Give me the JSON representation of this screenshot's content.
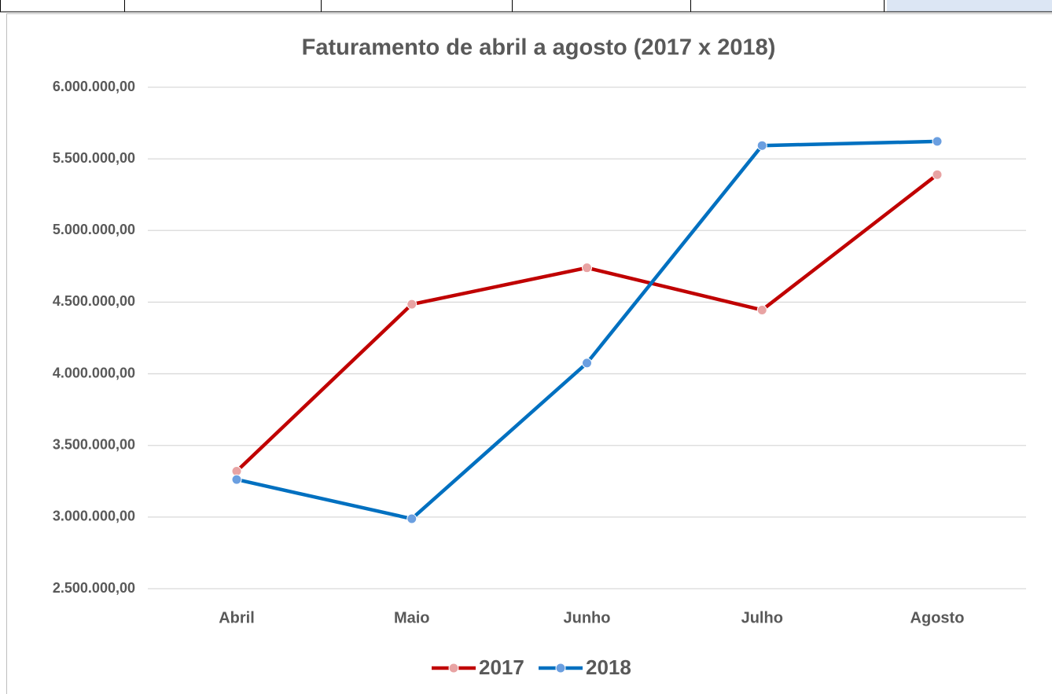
{
  "chart_data": {
    "type": "line",
    "title": "Faturamento de abril a agosto (2017 x 2018)",
    "categories": [
      "Abril",
      "Maio",
      "Junho",
      "Julho",
      "Agosto"
    ],
    "series": [
      {
        "name": "2017",
        "color": "#c00000",
        "marker_color": "#e8a3a3",
        "values": [
          3320000,
          4485000,
          4740000,
          4445000,
          5390000
        ]
      },
      {
        "name": "2018",
        "color": "#0070c0",
        "marker_color": "#6b9fe0",
        "values": [
          3262000,
          2988000,
          4075000,
          5593000,
          5622000
        ]
      }
    ],
    "ylim": [
      2500000,
      6000000
    ],
    "yticks": [
      {
        "value": 2500000,
        "label": "2.500.000,00"
      },
      {
        "value": 3000000,
        "label": "3.000.000,00"
      },
      {
        "value": 3500000,
        "label": "3.500.000,00"
      },
      {
        "value": 4000000,
        "label": "4.000.000,00"
      },
      {
        "value": 4500000,
        "label": "4.500.000,00"
      },
      {
        "value": 5000000,
        "label": "5.000.000,00"
      },
      {
        "value": 5500000,
        "label": "5.500.000,00"
      },
      {
        "value": 6000000,
        "label": "6.000.000,00"
      }
    ],
    "grid": true,
    "legend": "bottom"
  }
}
